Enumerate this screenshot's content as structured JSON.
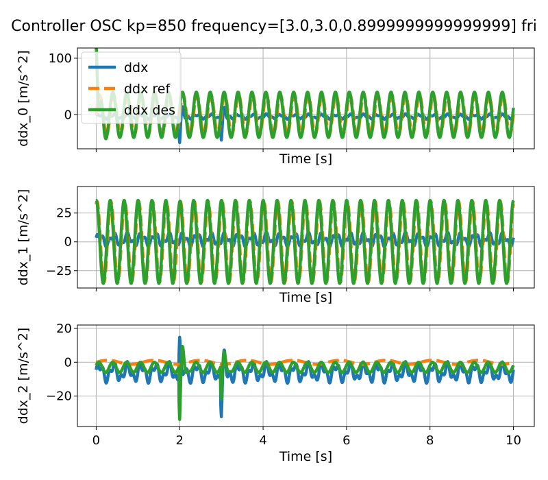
{
  "title": "Controller OSC kp=850 frequency=[3.0,3.0,0.8999999999999999] fri",
  "colors": {
    "ddx": "#1f77b4",
    "ddx_ref": "#ff7f0e",
    "ddx_des": "#2ca02c",
    "grid": "#b0b0b0"
  },
  "chart_data": [
    {
      "type": "line",
      "ylabel": "ddx_0 [m/s^2]",
      "xlabel": "Time [s]",
      "xlim": [
        -0.45,
        10.5
      ],
      "ylim": [
        -60,
        118
      ],
      "xticks": [
        0,
        2,
        4,
        6,
        8,
        10
      ],
      "yticks": [
        0,
        100
      ],
      "ytick_labels": [
        "0",
        "100"
      ],
      "grid": true,
      "legend": {
        "position": "top-left",
        "entries": [
          "ddx",
          "ddx ref",
          "ddx des"
        ]
      },
      "series": [
        {
          "name": "ddx",
          "style": "solid",
          "kind": "tracking",
          "amp": 3,
          "offset": -3,
          "period": 0.3333,
          "events": [
            {
              "t": 2.0,
              "amp": -45
            },
            {
              "t": 3.0,
              "amp": -40
            }
          ]
        },
        {
          "name": "ddx ref",
          "style": "dashed",
          "kind": "sine",
          "amp": 35,
          "offset": 0,
          "period": 0.3333,
          "phase": 0
        },
        {
          "name": "ddx des",
          "style": "solid",
          "kind": "sine",
          "amp": 40,
          "offset": 0,
          "period": 0.3333,
          "phase": 0.3,
          "events": [
            {
              "t": 0.0,
              "amp": 110
            }
          ]
        }
      ]
    },
    {
      "type": "line",
      "ylabel": "ddx_1 [m/s^2]",
      "xlabel": "Time [s]",
      "xlim": [
        -0.45,
        10.5
      ],
      "ylim": [
        -40,
        48
      ],
      "xticks": [
        0,
        2,
        4,
        6,
        8,
        10
      ],
      "yticks": [
        -25,
        0,
        25
      ],
      "ytick_labels": [
        "−25",
        "0",
        "25"
      ],
      "grid": true,
      "series": [
        {
          "name": "ddx",
          "style": "solid",
          "kind": "tracking",
          "amp": 4,
          "offset": 2,
          "period": 0.3333,
          "events": []
        },
        {
          "name": "ddx ref",
          "style": "dashed",
          "kind": "sine",
          "amp": 35,
          "offset": 0,
          "period": 0.3333,
          "phase": 1.2
        },
        {
          "name": "ddx des",
          "style": "solid",
          "kind": "sine",
          "amp": 36,
          "offset": 0,
          "period": 0.3333,
          "phase": 1.5,
          "events": [
            {
              "t": 1.9,
              "amp": 10
            }
          ]
        }
      ]
    },
    {
      "type": "line",
      "ylabel": "ddx_2 [m/s^2]",
      "xlabel": "Time [s]",
      "xlim": [
        -0.45,
        10.5
      ],
      "ylim": [
        -38,
        22
      ],
      "xticks": [
        0,
        2,
        4,
        6,
        8,
        10
      ],
      "xtick_labels": [
        "0",
        "2",
        "4",
        "6",
        "8",
        "10"
      ],
      "yticks": [
        -20,
        0,
        20
      ],
      "ytick_labels": [
        "−20",
        "0",
        "20"
      ],
      "grid": true,
      "series": [
        {
          "name": "ddx",
          "style": "solid",
          "kind": "tracking",
          "amp": 4,
          "offset": -6,
          "period": 0.3333,
          "events": [
            {
              "t": 2.0,
              "amp": 22
            },
            {
              "t": 3.0,
              "amp": -24
            }
          ]
        },
        {
          "name": "ddx ref",
          "style": "dashed",
          "kind": "sine",
          "amp": 1.2,
          "offset": 0,
          "period": 1.111,
          "phase": 0
        },
        {
          "name": "ddx des",
          "style": "solid",
          "kind": "sine",
          "amp": 3,
          "offset": -3,
          "period": 0.3333,
          "phase": 0.4,
          "events": [
            {
              "t": 2.0,
              "amp": -32
            },
            {
              "t": 3.0,
              "amp": -20
            }
          ]
        }
      ]
    }
  ]
}
